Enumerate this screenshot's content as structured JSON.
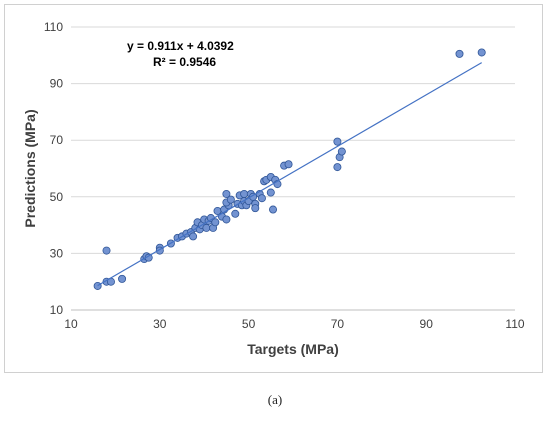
{
  "caption": "(a)",
  "chart_data": {
    "type": "scatter",
    "xlabel": "Targets (MPa)",
    "ylabel": "Predictions (MPa)",
    "xlim": [
      10,
      110
    ],
    "ylim": [
      10,
      110
    ],
    "x_ticks": [
      10,
      30,
      50,
      70,
      90,
      110
    ],
    "y_ticks": [
      10,
      30,
      50,
      70,
      90,
      110
    ],
    "grid": "horizontal",
    "marker_color": "#7393d1",
    "marker_edge": "#2f5597",
    "trendline_color": "#4472c4",
    "trendline": {
      "slope": 0.911,
      "intercept": 4.0392,
      "x_range": [
        16,
        102.5
      ]
    },
    "equation": "y = 0.911x + 4.0392",
    "r2_label": "R² = 0.9546",
    "points": [
      [
        16,
        18.5
      ],
      [
        18,
        20
      ],
      [
        18,
        31
      ],
      [
        19,
        20
      ],
      [
        21.5,
        21
      ],
      [
        26.5,
        28
      ],
      [
        27,
        29
      ],
      [
        27.5,
        28.5
      ],
      [
        30,
        32
      ],
      [
        30,
        31
      ],
      [
        32.5,
        33.5
      ],
      [
        34,
        35.5
      ],
      [
        35,
        36
      ],
      [
        36,
        37
      ],
      [
        37,
        37.5
      ],
      [
        37.5,
        36
      ],
      [
        38,
        39
      ],
      [
        38.5,
        41
      ],
      [
        39,
        38.5
      ],
      [
        39.5,
        40
      ],
      [
        40,
        42
      ],
      [
        40.5,
        39
      ],
      [
        41,
        41.5
      ],
      [
        41.5,
        42.5
      ],
      [
        42,
        39
      ],
      [
        42.5,
        41
      ],
      [
        43,
        45
      ],
      [
        44,
        43
      ],
      [
        44.5,
        45.5
      ],
      [
        45,
        42
      ],
      [
        45,
        51
      ],
      [
        45.5,
        47
      ],
      [
        45,
        48
      ],
      [
        46,
        49
      ],
      [
        47,
        44
      ],
      [
        47.5,
        47.5
      ],
      [
        48,
        50.5
      ],
      [
        48.5,
        47
      ],
      [
        49,
        48.5
      ],
      [
        49,
        51
      ],
      [
        49.5,
        47
      ],
      [
        50,
        48.5
      ],
      [
        50.5,
        51
      ],
      [
        51,
        50
      ],
      [
        51.5,
        47.5
      ],
      [
        51.5,
        46
      ],
      [
        52.5,
        51
      ],
      [
        53,
        49.5
      ],
      [
        53.5,
        55.5
      ],
      [
        54,
        56
      ],
      [
        55,
        51.5
      ],
      [
        55,
        57
      ],
      [
        55.5,
        45.5
      ],
      [
        56,
        56
      ],
      [
        56.5,
        54.5
      ],
      [
        58,
        61
      ],
      [
        59,
        61.5
      ],
      [
        70,
        69.5
      ],
      [
        70,
        60.5
      ],
      [
        70.5,
        64
      ],
      [
        71,
        66
      ],
      [
        97.5,
        100.5
      ],
      [
        102.5,
        101
      ]
    ]
  }
}
